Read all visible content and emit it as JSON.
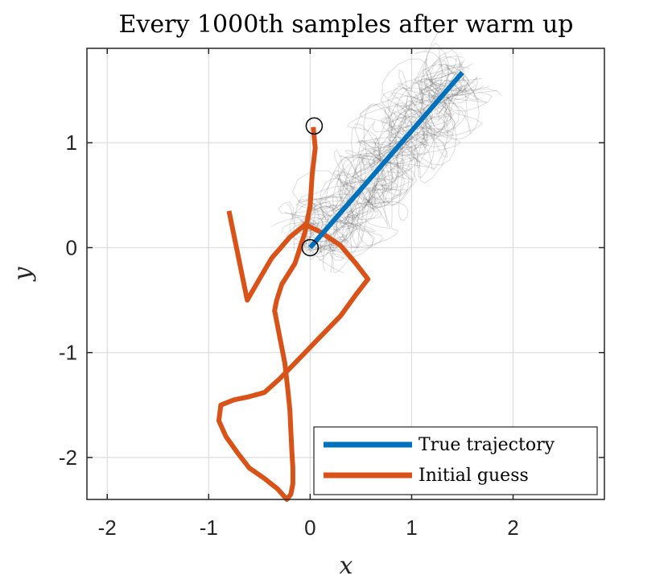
{
  "chart_data": {
    "type": "line",
    "title": "Every 1000th samples after warm up",
    "xlabel": "x",
    "ylabel": "y",
    "xlim": [
      -2.2,
      2.9
    ],
    "ylim": [
      -2.4,
      1.9
    ],
    "grid": true,
    "x_ticks": [
      -2,
      -1,
      0,
      1,
      2
    ],
    "y_ticks": [
      -2,
      -1,
      0,
      1
    ],
    "x_tick_labels": [
      "-2",
      "-1",
      "0",
      "1",
      "2"
    ],
    "y_tick_labels": [
      "-2",
      "-1",
      "0",
      "1"
    ],
    "legend_position": "bottom-right",
    "series": [
      {
        "name": "True trajectory",
        "color": "#0072BD",
        "x": [
          0.0,
          1.5
        ],
        "y": [
          0.0,
          1.67
        ]
      },
      {
        "name": "Initial guess",
        "color": "#D95319",
        "x": [
          0.03,
          0.05,
          0.02,
          0.0,
          -0.05,
          -0.15,
          -0.28,
          -0.33,
          -0.35,
          -0.3,
          -0.25,
          -0.22,
          -0.2,
          -0.19,
          -0.18,
          -0.17,
          -0.17,
          -0.19,
          -0.23,
          -0.32,
          -0.45,
          -0.6,
          -0.72,
          -0.83,
          -0.9,
          -0.88,
          -0.75,
          -0.6,
          -0.45,
          -0.3,
          -0.1,
          0.1,
          0.3,
          0.45,
          0.57,
          0.45,
          0.3,
          0.1,
          -0.05,
          -0.2,
          -0.38,
          -0.5,
          -0.62,
          -0.8
        ],
        "y": [
          1.15,
          0.95,
          0.7,
          0.4,
          0.15,
          -0.15,
          -0.35,
          -0.5,
          -0.6,
          -0.85,
          -1.1,
          -1.35,
          -1.55,
          -1.75,
          -1.95,
          -2.1,
          -2.25,
          -2.35,
          -2.4,
          -2.3,
          -2.2,
          -2.1,
          -1.95,
          -1.8,
          -1.65,
          -1.5,
          -1.45,
          -1.42,
          -1.38,
          -1.25,
          -1.05,
          -0.85,
          -0.65,
          -0.45,
          -0.3,
          -0.15,
          0.02,
          0.15,
          0.22,
          0.1,
          -0.1,
          -0.3,
          -0.5,
          0.35
        ]
      }
    ],
    "markers": [
      {
        "name": "start-point",
        "x": 0.0,
        "y": 0.0
      },
      {
        "name": "end-point",
        "x": 0.04,
        "y": 1.16
      }
    ],
    "samples_note": "gray posterior sample trajectories around the true trajectory"
  }
}
